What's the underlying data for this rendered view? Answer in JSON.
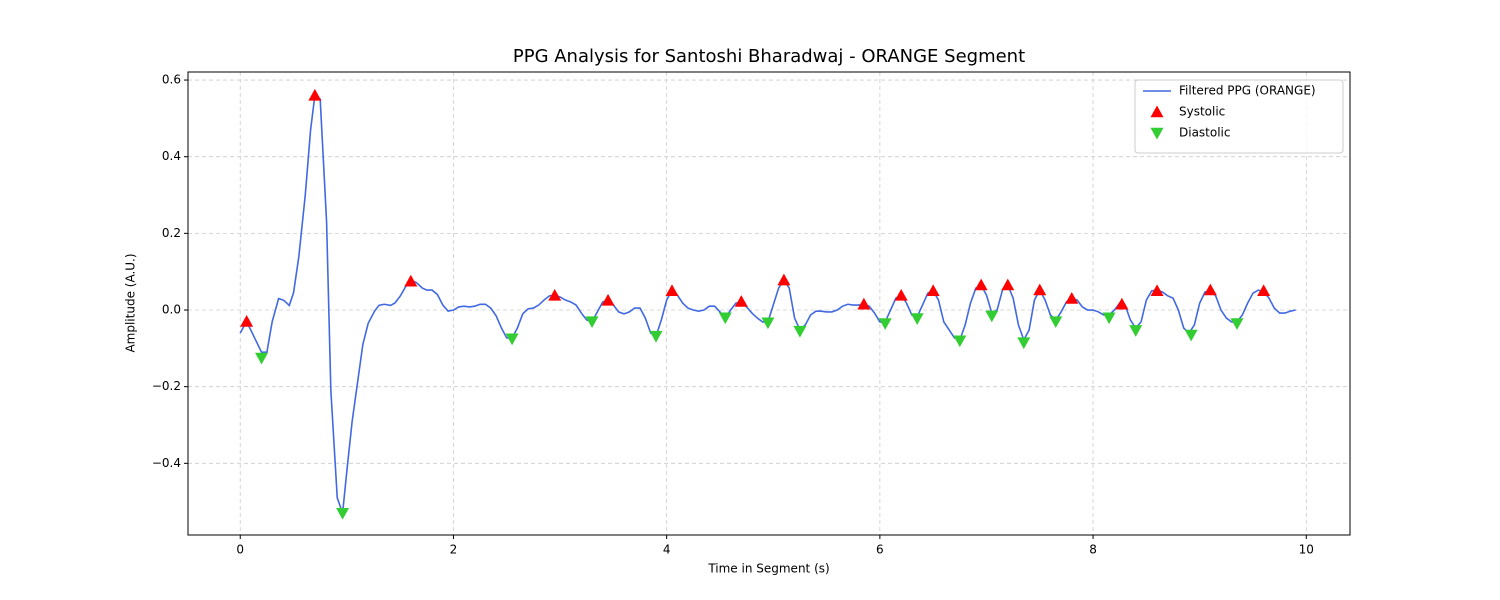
{
  "chart_data": {
    "type": "line",
    "title": "PPG Analysis for Santoshi Bharadwaj - ORANGE Segment",
    "x_label": "Time in Segment (s)",
    "y_label": "Amplitude (A.U.)",
    "xlim": [
      -0.49,
      10.41
    ],
    "ylim": [
      -0.587,
      0.621
    ],
    "xticks": [
      0,
      2,
      4,
      6,
      8,
      10
    ],
    "yticks": [
      {
        "value": -0.4,
        "label": "−0.4"
      },
      {
        "value": -0.2,
        "label": "−0.2"
      },
      {
        "value": 0,
        "label": "0.0"
      },
      0.2,
      0.4,
      0.6
    ],
    "grid": true,
    "legend": "upper right",
    "series": [
      {
        "name": "Filtered PPG (ORANGE)",
        "type": "line",
        "color": "#4169e1",
        "x": [
          0,
          0.06,
          0.2,
          0.25,
          0.3,
          0.36,
          0.41,
          0.46,
          0.5,
          0.55,
          0.61,
          0.66,
          0.7,
          0.75,
          0.81,
          0.85,
          0.91,
          0.96,
          1.0,
          1.05,
          1.11,
          1.15,
          1.2,
          1.26,
          1.3,
          1.35,
          1.41,
          1.45,
          1.5,
          1.56,
          1.6,
          1.65,
          1.71,
          1.75,
          1.8,
          1.85,
          1.9,
          1.95,
          2.0,
          2.05,
          2.1,
          2.15,
          2.2,
          2.25,
          2.3,
          2.35,
          2.4,
          2.45,
          2.5,
          2.55,
          2.6,
          2.65,
          2.7,
          2.75,
          2.8,
          2.85,
          2.9,
          2.95,
          3.0,
          3.05,
          3.1,
          3.15,
          3.2,
          3.25,
          3.3,
          3.35,
          3.4,
          3.45,
          3.5,
          3.55,
          3.6,
          3.65,
          3.7,
          3.75,
          3.8,
          3.85,
          3.9,
          3.95,
          4.0,
          4.05,
          4.1,
          4.15,
          4.2,
          4.25,
          4.3,
          4.35,
          4.4,
          4.45,
          4.5,
          4.55,
          4.6,
          4.65,
          4.7,
          4.75,
          4.8,
          4.85,
          4.9,
          4.95,
          5.0,
          5.05,
          5.1,
          5.15,
          5.2,
          5.25,
          5.3,
          5.35,
          5.4,
          5.45,
          5.5,
          5.55,
          5.6,
          5.65,
          5.7,
          5.75,
          5.8,
          5.85,
          5.9,
          5.95,
          6.0,
          6.05,
          6.1,
          6.15,
          6.2,
          6.25,
          6.3,
          6.35,
          6.4,
          6.45,
          6.5,
          6.55,
          6.6,
          6.65,
          6.7,
          6.75,
          6.8,
          6.85,
          6.9,
          6.95,
          7.0,
          7.05,
          7.1,
          7.15,
          7.2,
          7.25,
          7.3,
          7.35,
          7.4,
          7.45,
          7.5,
          7.55,
          7.6,
          7.65,
          7.7,
          7.75,
          7.8,
          7.85,
          7.9,
          7.95,
          8.0,
          8.05,
          8.1,
          8.15,
          8.2,
          8.25,
          8.3,
          8.35,
          8.4,
          8.45,
          8.5,
          8.55,
          8.6,
          8.65,
          8.7,
          8.75,
          8.8,
          8.85,
          8.9,
          8.95,
          9.0,
          9.05,
          9.1,
          9.15,
          9.2,
          9.25,
          9.3,
          9.35,
          9.4,
          9.45,
          9.5,
          9.55,
          9.6,
          9.65,
          9.7,
          9.75,
          9.8,
          9.85,
          9.9
        ],
        "values": [
          -0.06,
          -0.03,
          -0.11,
          -0.11,
          -0.03,
          0.03,
          0.025,
          0.012,
          0.045,
          0.14,
          0.3,
          0.47,
          0.56,
          0.55,
          0.23,
          -0.21,
          -0.49,
          -0.53,
          -0.42,
          -0.29,
          -0.17,
          -0.09,
          -0.035,
          -0.003,
          0.012,
          0.015,
          0.012,
          0.018,
          0.036,
          0.065,
          0.078,
          0.072,
          0.057,
          0.052,
          0.052,
          0.04,
          0.013,
          -0.003,
          0,
          0.008,
          0.01,
          0.008,
          0.01,
          0.015,
          0.015,
          0.005,
          -0.015,
          -0.047,
          -0.073,
          -0.073,
          -0.047,
          -0.01,
          0.003,
          0.005,
          0.013,
          0.026,
          0.037,
          0.039,
          0.034,
          0.026,
          0.021,
          0.013,
          -0.008,
          -0.026,
          -0.031,
          -0.005,
          0.021,
          0.026,
          0.013,
          -0.005,
          -0.01,
          -0.005,
          0.005,
          0.005,
          -0.021,
          -0.06,
          -0.068,
          -0.026,
          0.026,
          0.052,
          0.039,
          0.018,
          0.005,
          0,
          -0.003,
          0,
          0.01,
          0.01,
          -0.005,
          -0.021,
          0,
          0.018,
          0.021,
          0.008,
          -0.008,
          -0.021,
          -0.031,
          -0.031,
          0.013,
          0.057,
          0.078,
          0.057,
          -0.021,
          -0.052,
          -0.039,
          -0.013,
          -0.003,
          -0.003,
          -0.005,
          -0.005,
          0,
          0.01,
          0.015,
          0.013,
          0.013,
          0.015,
          0.01,
          -0.008,
          -0.031,
          -0.031,
          0,
          0.031,
          0.039,
          0.018,
          -0.013,
          -0.018,
          0.013,
          0.044,
          0.05,
          0.026,
          -0.031,
          -0.052,
          -0.073,
          -0.078,
          -0.039,
          0.018,
          0.057,
          0.065,
          0.039,
          -0.008,
          0,
          0.052,
          0.065,
          0.031,
          -0.039,
          -0.078,
          -0.052,
          0.026,
          0.052,
          0.026,
          -0.013,
          -0.026,
          -0.005,
          0.021,
          0.031,
          0.026,
          0.008,
          0,
          0,
          -0.005,
          -0.013,
          -0.013,
          0,
          0.018,
          0.013,
          -0.026,
          -0.047,
          -0.031,
          0.026,
          0.05,
          0.052,
          0.047,
          0.037,
          0.031,
          0,
          -0.047,
          -0.06,
          -0.039,
          0.018,
          0.047,
          0.05,
          0.037,
          0,
          -0.021,
          -0.031,
          -0.031,
          -0.013,
          0.018,
          0.044,
          0.052,
          0.047,
          0.031,
          0.005,
          -0.008,
          -0.008,
          -0.003,
          0
        ]
      },
      {
        "name": "Systolic",
        "type": "scatter",
        "marker": "triangle-up",
        "color": "#ff0000",
        "x": [
          0.06,
          0.7,
          1.6,
          2.95,
          3.45,
          4.05,
          4.7,
          5.1,
          5.85,
          6.2,
          6.5,
          6.95,
          7.2,
          7.5,
          7.8,
          8.27,
          8.6,
          9.1,
          9.6
        ],
        "values": [
          -0.03,
          0.56,
          0.075,
          0.038,
          0.025,
          0.05,
          0.022,
          0.078,
          0.015,
          0.038,
          0.05,
          0.065,
          0.065,
          0.052,
          0.03,
          0.015,
          0.05,
          0.052,
          0.05
        ]
      },
      {
        "name": "Diastolic",
        "type": "scatter",
        "marker": "triangle-down",
        "color": "#32cd32",
        "x": [
          0.2,
          0.96,
          2.55,
          3.3,
          3.9,
          4.55,
          4.95,
          5.25,
          6.05,
          6.35,
          6.75,
          7.05,
          7.35,
          7.65,
          8.15,
          8.4,
          8.92,
          9.35
        ],
        "values": [
          -0.125,
          -0.53,
          -0.075,
          -0.03,
          -0.068,
          -0.02,
          -0.033,
          -0.055,
          -0.035,
          -0.022,
          -0.08,
          -0.015,
          -0.085,
          -0.03,
          -0.02,
          -0.053,
          -0.065,
          -0.035
        ]
      }
    ]
  }
}
